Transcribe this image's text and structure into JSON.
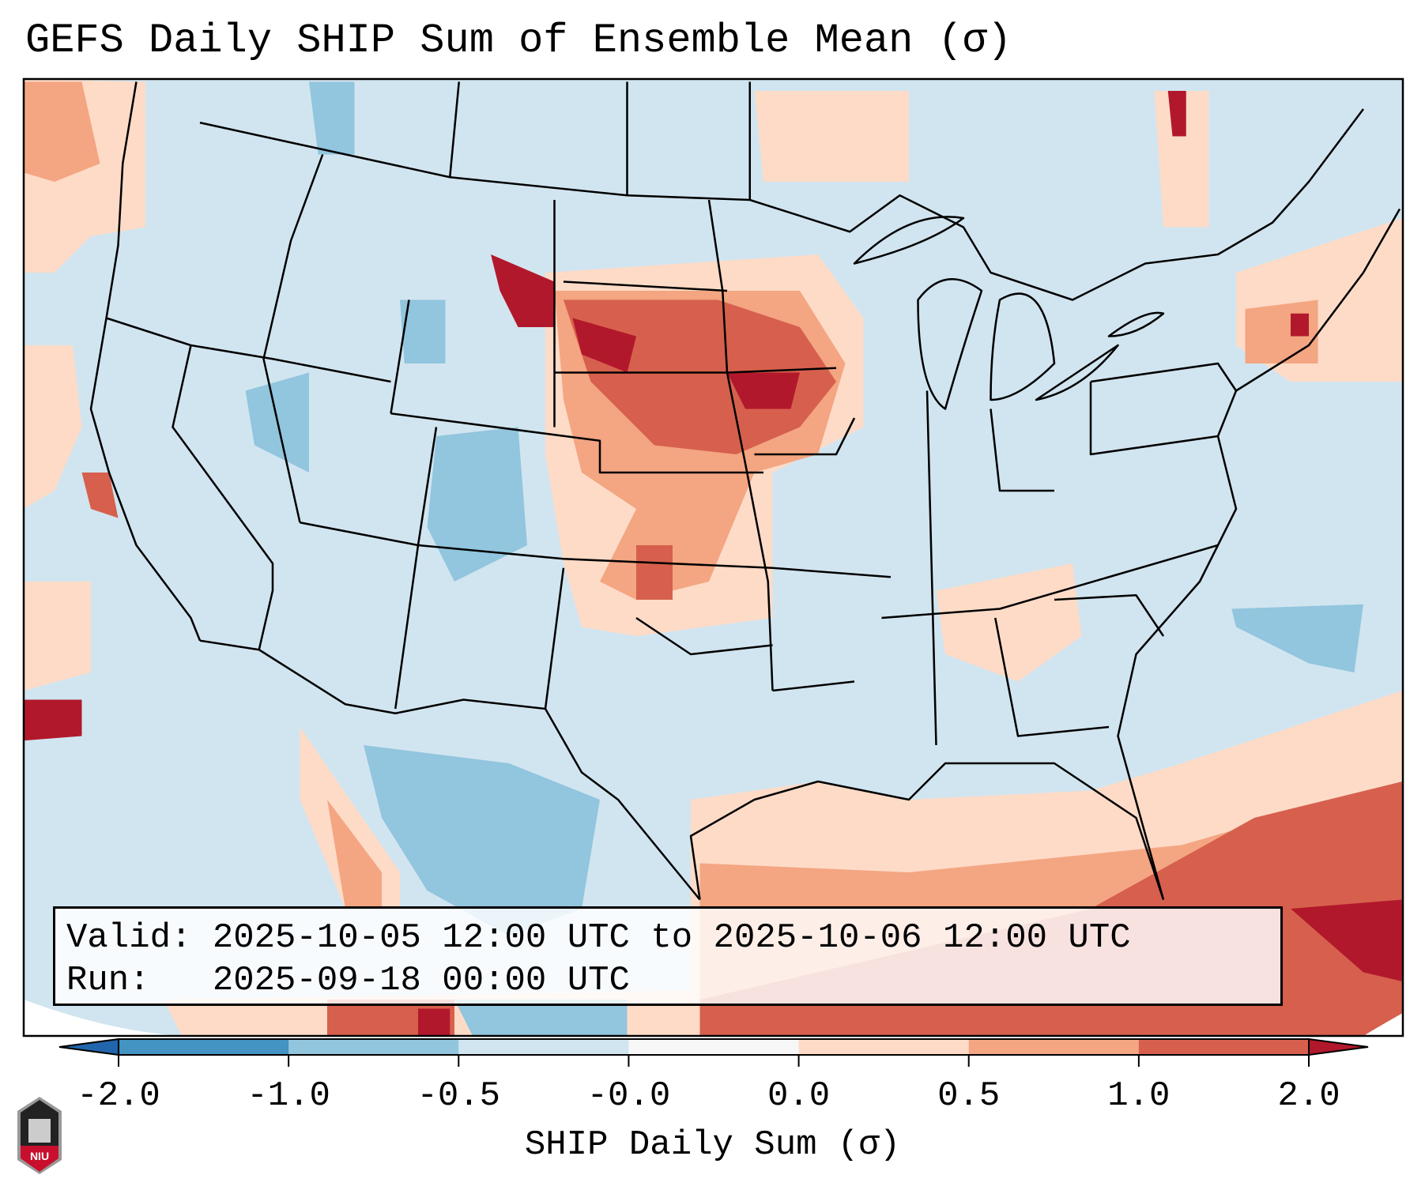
{
  "title": "GEFS Daily SHIP Sum of Ensemble Mean (σ)",
  "info_box": {
    "valid_label": "Valid:",
    "valid_value": "2025-10-05 12:00 UTC to 2025-10-06 12:00 UTC",
    "run_label": "Run:",
    "run_value": "2025-09-18 00:00 UTC"
  },
  "colorbar": {
    "label": "SHIP Daily Sum (σ)",
    "ticks": [
      "-2.0",
      "-1.0",
      "-0.5",
      "-0.0",
      "0.0",
      "0.5",
      "1.0",
      "2.0"
    ],
    "bin_colors": [
      "#4393c3",
      "#92c5de",
      "#d1e5f0",
      "#f7f7f7",
      "#fddbc7",
      "#f4a582",
      "#d6604d"
    ],
    "extend_low_color": "#2166ac",
    "extend_high_color": "#b2182b"
  },
  "logo": {
    "text": "NIU"
  }
}
